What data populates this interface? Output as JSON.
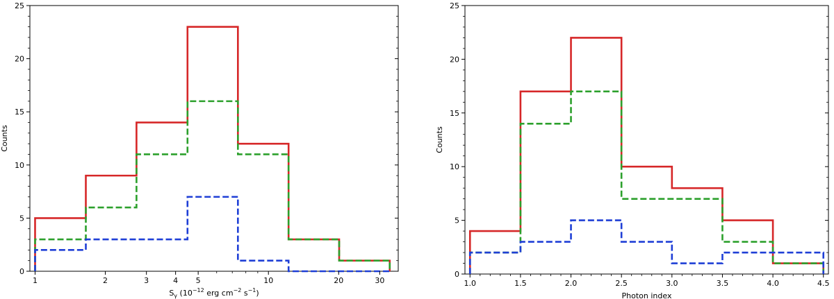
{
  "chart_data": [
    {
      "type": "histogram",
      "xscale": "log",
      "xlim": [
        0.95,
        36
      ],
      "ylim": [
        0,
        25
      ],
      "xlabel": "S_γ (10^-12 erg cm^-2 s^-1)",
      "xlabel_parts": {
        "main": "S",
        "sub": "γ",
        "unit_open": " (10",
        "exp1": "−12",
        "mid1": " erg cm",
        "exp2": "−2",
        "mid2": " s",
        "exp3": "−1",
        "close": ")"
      },
      "ylabel": "Counts",
      "xticks": [
        1,
        2,
        3,
        4,
        5,
        10,
        20,
        30
      ],
      "xtick_labels": [
        "1",
        "2",
        "3",
        "4",
        "5",
        "10",
        "20",
        "30"
      ],
      "yticks": [
        0,
        5,
        10,
        15,
        20,
        25
      ],
      "ytick_labels": [
        "0",
        "5",
        "10",
        "15",
        "20",
        "25"
      ],
      "bin_edges": [
        1.0,
        1.65,
        2.72,
        4.5,
        7.4,
        12.2,
        20.1,
        33.1
      ],
      "series": [
        {
          "values": [
            5,
            9,
            14,
            23,
            12,
            3,
            1
          ],
          "color": "#d62728",
          "style": "solid"
        },
        {
          "values": [
            3,
            6,
            11,
            16,
            11,
            3,
            1
          ],
          "color": "#2ca02c",
          "style": "dashed"
        },
        {
          "values": [
            2,
            3,
            3,
            7,
            1,
            0,
            0
          ],
          "color": "#1f3fd6",
          "style": "dashed"
        }
      ]
    },
    {
      "type": "histogram",
      "xscale": "linear",
      "xlim": [
        0.95,
        4.55
      ],
      "ylim": [
        0,
        25
      ],
      "xlabel": "Photon index",
      "ylabel": "Counts",
      "xticks": [
        1.0,
        1.5,
        2.0,
        2.5,
        3.0,
        3.5,
        4.0,
        4.5
      ],
      "xtick_labels": [
        "1.0",
        "1.5",
        "2.0",
        "2.5",
        "3.0",
        "3.5",
        "4.0",
        "4.5"
      ],
      "yticks": [
        0,
        5,
        10,
        15,
        20,
        25
      ],
      "ytick_labels": [
        "0",
        "5",
        "10",
        "15",
        "20",
        "25"
      ],
      "bin_edges": [
        1.0,
        1.5,
        2.0,
        2.5,
        3.0,
        3.5,
        4.0,
        4.5
      ],
      "series": [
        {
          "values": [
            4,
            17,
            22,
            10,
            8,
            5,
            1
          ],
          "color": "#d62728",
          "style": "solid"
        },
        {
          "values": [
            2,
            14,
            17,
            7,
            7,
            3,
            1
          ],
          "color": "#2ca02c",
          "style": "dashed"
        },
        {
          "values": [
            2,
            3,
            5,
            3,
            1,
            2,
            2
          ],
          "color": "#1f3fd6",
          "style": "dashed"
        }
      ]
    }
  ]
}
